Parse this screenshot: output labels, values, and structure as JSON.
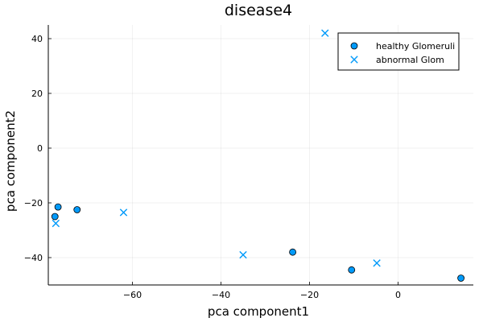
{
  "chart_data": {
    "type": "scatter",
    "title": "disease4",
    "xlabel": "pca component1",
    "ylabel": "pca component2",
    "xlim": [
      -79,
      17
    ],
    "ylim": [
      -50,
      45
    ],
    "xticks": [
      -60,
      -40,
      -20,
      0
    ],
    "yticks": [
      -40,
      -20,
      0,
      20,
      40
    ],
    "grid": true,
    "legend_position": "top-right",
    "series": [
      {
        "name": "healthy Glomeruli",
        "marker": "circle",
        "color": "#009AFA",
        "points": [
          {
            "x": -77.5,
            "y": -25
          },
          {
            "x": -76.8,
            "y": -21.5
          },
          {
            "x": -72.5,
            "y": -22.5
          },
          {
            "x": -23.8,
            "y": -38
          },
          {
            "x": -10.5,
            "y": -44.5
          },
          {
            "x": 14.2,
            "y": -47.5
          }
        ]
      },
      {
        "name": "abnormal Glom",
        "marker": "cross",
        "color": "#009AFA",
        "points": [
          {
            "x": -77.3,
            "y": -27.5
          },
          {
            "x": -62,
            "y": -23.5
          },
          {
            "x": -35,
            "y": -39
          },
          {
            "x": -16.5,
            "y": 42
          },
          {
            "x": -4.8,
            "y": -42
          }
        ]
      }
    ]
  }
}
